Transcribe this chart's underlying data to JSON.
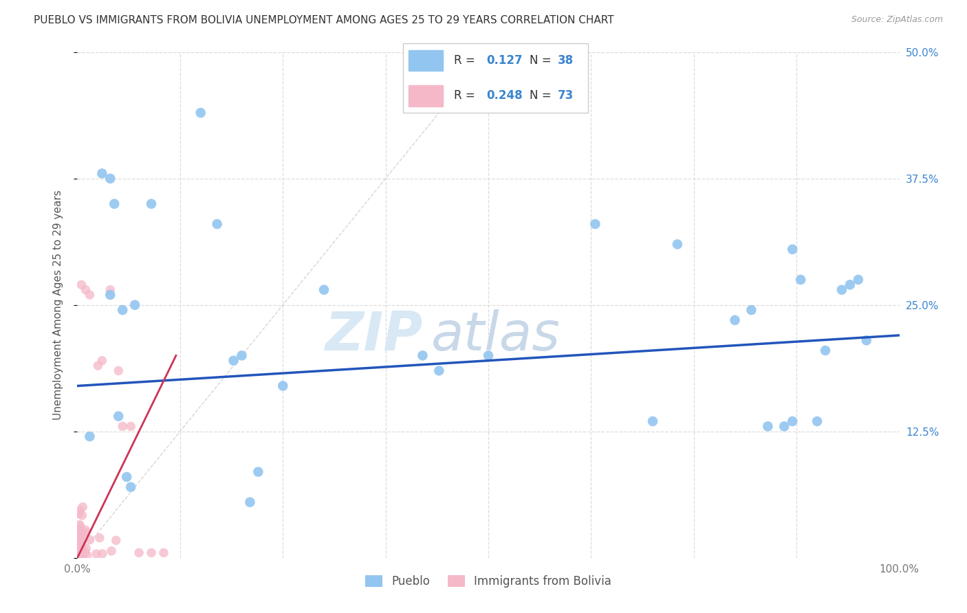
{
  "title": "PUEBLO VS IMMIGRANTS FROM BOLIVIA UNEMPLOYMENT AMONG AGES 25 TO 29 YEARS CORRELATION CHART",
  "source": "Source: ZipAtlas.com",
  "ylabel": "Unemployment Among Ages 25 to 29 years",
  "legend_label_1": "Pueblo",
  "legend_label_2": "Immigrants from Bolivia",
  "r1": 0.127,
  "n1": 38,
  "r2": 0.248,
  "n2": 73,
  "color_blue": "#92c5f0",
  "color_pink": "#f5b8c8",
  "color_blue_text": "#3a85d0",
  "color_trend_blue": "#2255bb",
  "color_trend_pink": "#cc3355",
  "xlim": [
    0,
    100
  ],
  "ylim": [
    0,
    50
  ],
  "blue_x": [
    1.5,
    3.0,
    4.0,
    4.5,
    5.0,
    6.0,
    6.5,
    9.0,
    15.0,
    17.0,
    20.0,
    21.0,
    22.0,
    30.0,
    42.0,
    44.0,
    63.0,
    70.0,
    73.0,
    80.0,
    82.0,
    84.0,
    86.0,
    87.0,
    88.0,
    90.0,
    91.0,
    93.0,
    94.0,
    96.0,
    4.0,
    5.5,
    7.0,
    19.0,
    25.0,
    50.0,
    87.0,
    95.0
  ],
  "blue_y": [
    12.0,
    38.0,
    37.5,
    35.0,
    14.0,
    8.0,
    7.0,
    35.0,
    44.0,
    33.0,
    20.0,
    5.5,
    8.5,
    26.5,
    20.0,
    18.5,
    33.0,
    13.5,
    31.0,
    23.5,
    24.5,
    13.0,
    13.0,
    30.5,
    27.5,
    13.5,
    20.5,
    26.5,
    27.0,
    21.5,
    26.0,
    24.5,
    25.0,
    19.5,
    17.0,
    20.0,
    13.5,
    27.5
  ],
  "pink_x_sparse": [
    0.5,
    1.0,
    1.5,
    2.5,
    3.0,
    4.0,
    5.0,
    5.5,
    6.5,
    7.5,
    9.0,
    10.5
  ],
  "pink_y_sparse": [
    27.0,
    26.5,
    26.0,
    19.0,
    19.5,
    26.5,
    18.5,
    13.0,
    13.0,
    0.5,
    0.5,
    0.5
  ],
  "blue_trend": [
    0,
    17.0,
    100,
    22.0
  ],
  "pink_trend": [
    0,
    0.0,
    12.0,
    20.0
  ],
  "watermark_zip": "ZIP",
  "watermark_atlas": "atlas",
  "title_fontsize": 11,
  "source_fontsize": 9,
  "axis_color": "#aaaaaa",
  "grid_color": "#dddddd",
  "tick_color": "#777777"
}
